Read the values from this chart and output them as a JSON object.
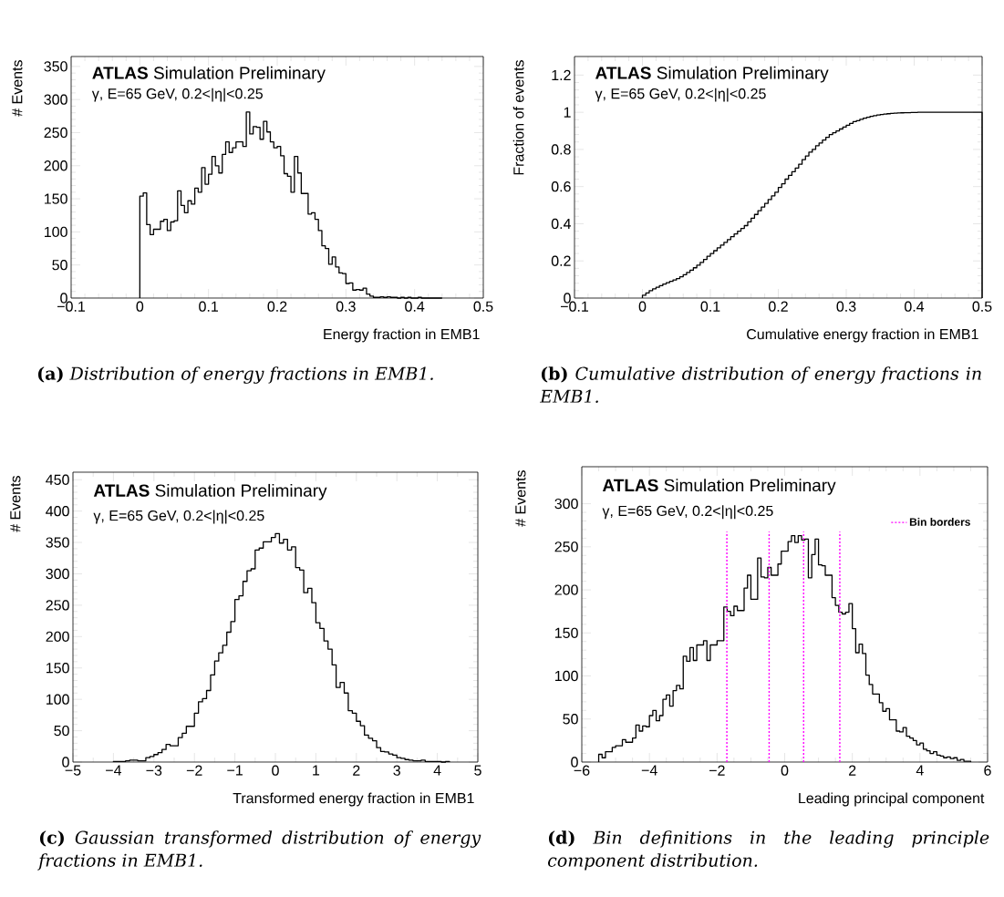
{
  "chart_data": [
    {
      "type": "histogram",
      "title": "**ATLAS** Simulation Preliminary",
      "subtitle": "γ, E=65 GeV, 0.2<|η|<0.25",
      "xlabel": "Energy fraction in EMB1",
      "ylabel": "# Events",
      "color": "#000000",
      "bins": [
        0,
        0.005,
        0.01,
        0.015,
        0.02,
        0.025,
        0.03,
        0.035,
        0.04,
        0.045,
        0.05,
        0.055,
        0.06,
        0.065,
        0.07,
        0.075,
        0.08,
        0.085,
        0.09,
        0.095,
        0.1,
        0.105,
        0.11,
        0.115,
        0.12,
        0.125,
        0.13,
        0.135,
        0.14,
        0.145,
        0.15,
        0.155,
        0.16,
        0.165,
        0.17,
        0.175,
        0.18,
        0.185,
        0.19,
        0.195,
        0.2,
        0.205,
        0.21,
        0.215,
        0.22,
        0.225,
        0.23,
        0.235,
        0.24,
        0.245,
        0.25,
        0.255,
        0.26,
        0.265,
        0.27,
        0.275,
        0.28,
        0.285,
        0.29,
        0.295,
        0.3,
        0.305,
        0.31,
        0.315,
        0.32,
        0.325,
        0.33,
        0.335,
        0.34,
        0.345,
        0.35,
        0.355,
        0.36,
        0.365,
        0.37,
        0.375,
        0.38,
        0.385,
        0.39,
        0.395,
        0.4,
        0.405,
        0.41,
        0.415,
        0.42,
        0.425,
        0.43,
        0.435,
        0.44
      ],
      "values": [
        154,
        159,
        111,
        96,
        104,
        104,
        116,
        119,
        102,
        115,
        117,
        162,
        140,
        129,
        147,
        142,
        166,
        160,
        197,
        172,
        187,
        214,
        200,
        189,
        217,
        236,
        220,
        227,
        236,
        236,
        229,
        281,
        248,
        259,
        258,
        240,
        267,
        251,
        236,
        227,
        229,
        215,
        188,
        184,
        160,
        214,
        189,
        158,
        158,
        127,
        129,
        119,
        102,
        79,
        75,
        51,
        62,
        47,
        38,
        37,
        22,
        23,
        12,
        13,
        12,
        15,
        6,
        3,
        1,
        1,
        2,
        1,
        2,
        1,
        1,
        0,
        1,
        0,
        1,
        0,
        0,
        1,
        0,
        0,
        0,
        0,
        0,
        0
      ],
      "xlim": [
        -0.1,
        0.5
      ],
      "ylim": [
        0,
        365
      ],
      "xticks": [
        {
          "value": -0.1,
          "label": "−0.1"
        },
        0,
        0.1,
        0.2,
        0.3,
        0.4,
        0.5
      ],
      "yticks": [
        0,
        50,
        100,
        150,
        200,
        250,
        300,
        350
      ],
      "annotations": [
        "**(a)** *Distribution of energy fractions in EMB1.*"
      ]
    },
    {
      "type": "histogram",
      "title": "**ATLAS** Simulation Preliminary",
      "subtitle": "γ, E=65 GeV, 0.2<|η|<0.25",
      "xlabel": "Cumulative energy fraction in EMB1",
      "ylabel": "Fraction of events",
      "color": "#000000",
      "bins": [
        0,
        0.005,
        0.01,
        0.015,
        0.02,
        0.025,
        0.03,
        0.035,
        0.04,
        0.045,
        0.05,
        0.055,
        0.06,
        0.065,
        0.07,
        0.075,
        0.08,
        0.085,
        0.09,
        0.095,
        0.1,
        0.105,
        0.11,
        0.115,
        0.12,
        0.125,
        0.13,
        0.135,
        0.14,
        0.145,
        0.15,
        0.155,
        0.16,
        0.165,
        0.17,
        0.175,
        0.18,
        0.185,
        0.19,
        0.195,
        0.2,
        0.205,
        0.21,
        0.215,
        0.22,
        0.225,
        0.23,
        0.235,
        0.24,
        0.245,
        0.25,
        0.255,
        0.26,
        0.265,
        0.27,
        0.275,
        0.28,
        0.285,
        0.29,
        0.295,
        0.3,
        0.305,
        0.31,
        0.315,
        0.32,
        0.325,
        0.33,
        0.335,
        0.34,
        0.345,
        0.35,
        0.355,
        0.36,
        0.365,
        0.37,
        0.375,
        0.38,
        0.385,
        0.39,
        0.395,
        0.4,
        0.405,
        0.41,
        0.415,
        0.42,
        0.425,
        0.43,
        0.435,
        0.44,
        0.445,
        0.45,
        0.455,
        0.46,
        0.465,
        0.47,
        0.475,
        0.48,
        0.485,
        0.49,
        0.495,
        0.5
      ],
      "values": [
        0.015,
        0.028,
        0.04,
        0.05,
        0.058,
        0.067,
        0.075,
        0.083,
        0.09,
        0.097,
        0.105,
        0.115,
        0.126,
        0.138,
        0.15,
        0.163,
        0.177,
        0.192,
        0.208,
        0.225,
        0.24,
        0.255,
        0.27,
        0.285,
        0.3,
        0.315,
        0.33,
        0.345,
        0.36,
        0.375,
        0.39,
        0.41,
        0.43,
        0.45,
        0.47,
        0.49,
        0.51,
        0.53,
        0.55,
        0.57,
        0.595,
        0.615,
        0.64,
        0.66,
        0.68,
        0.7,
        0.72,
        0.745,
        0.765,
        0.785,
        0.8,
        0.82,
        0.835,
        0.85,
        0.865,
        0.88,
        0.89,
        0.9,
        0.91,
        0.92,
        0.93,
        0.94,
        0.95,
        0.955,
        0.962,
        0.968,
        0.973,
        0.978,
        0.982,
        0.985,
        0.988,
        0.99,
        0.992,
        0.994,
        0.995,
        0.996,
        0.997,
        0.998,
        0.998,
        0.999,
        0.999,
        1,
        1,
        1,
        1,
        1,
        1,
        1,
        1,
        1,
        1,
        1,
        1,
        1,
        1,
        1,
        1,
        1,
        1,
        1
      ],
      "xlim": [
        -0.1,
        0.5
      ],
      "ylim": [
        0,
        1.3
      ],
      "xticks": [
        {
          "value": -0.1,
          "label": "−0.1"
        },
        0,
        0.1,
        0.2,
        0.3,
        0.4,
        0.5
      ],
      "yticks": [
        0,
        0.2,
        0.4,
        0.6,
        0.8,
        1,
        1.2
      ],
      "annotations": [
        "**(b)** *Cumulative distribution of energy fractions in EMB1.*"
      ]
    },
    {
      "type": "histogram",
      "title": "**ATLAS** Simulation Preliminary",
      "subtitle": "γ, E=65 GeV, 0.2<|η|<0.25",
      "xlabel": "Transformed energy fraction in EMB1",
      "ylabel": "# Events",
      "color": "#000000",
      "bins": [
        -4,
        -3.9,
        -3.8,
        -3.7,
        -3.6,
        -3.5,
        -3.4,
        -3.3,
        -3.2,
        -3.1,
        -3,
        -2.9,
        -2.8,
        -2.7,
        -2.6,
        -2.5,
        -2.4,
        -2.3,
        -2.2,
        -2.1,
        -2,
        -1.9,
        -1.8,
        -1.7,
        -1.6,
        -1.5,
        -1.4,
        -1.3,
        -1.2,
        -1.1,
        -1,
        -0.9,
        -0.8,
        -0.7,
        -0.6,
        -0.5,
        -0.4,
        -0.3,
        -0.2,
        -0.1,
        0,
        0.1,
        0.2,
        0.3,
        0.4,
        0.5,
        0.6,
        0.7,
        0.8,
        0.9,
        1,
        1.1,
        1.2,
        1.3,
        1.4,
        1.5,
        1.6,
        1.7,
        1.8,
        1.9,
        2,
        2.1,
        2.2,
        2.3,
        2.4,
        2.5,
        2.6,
        2.7,
        2.8,
        2.9,
        3,
        3.1,
        3.2,
        3.3,
        3.4,
        3.5,
        3.6,
        3.7,
        3.8,
        3.9,
        4,
        4.1,
        4.2,
        4.3
      ],
      "values": [
        1,
        1,
        1,
        2,
        3,
        3,
        2,
        2,
        7,
        9,
        12,
        15,
        20,
        28,
        26,
        26,
        39,
        46,
        57,
        57,
        78,
        96,
        101,
        114,
        139,
        161,
        174,
        186,
        207,
        224,
        259,
        265,
        288,
        305,
        308,
        338,
        341,
        351,
        351,
        358,
        364,
        349,
        355,
        338,
        343,
        310,
        306,
        270,
        277,
        254,
        222,
        213,
        193,
        180,
        155,
        119,
        127,
        110,
        82,
        78,
        65,
        58,
        43,
        38,
        34,
        23,
        17,
        16,
        13,
        11,
        7,
        6,
        4,
        3,
        2,
        2,
        3,
        1,
        1,
        1,
        1,
        0,
        1
      ],
      "xlim": [
        -5,
        5
      ],
      "ylim": [
        0,
        462
      ],
      "xticks": [
        {
          "value": -5,
          "label": "−5"
        },
        {
          "value": -4,
          "label": "−4"
        },
        {
          "value": -3,
          "label": "−3"
        },
        {
          "value": -2,
          "label": "−2"
        },
        {
          "value": -1,
          "label": "−1"
        },
        0,
        1,
        2,
        3,
        4,
        5
      ],
      "yticks": [
        0,
        50,
        100,
        150,
        200,
        250,
        300,
        350,
        400,
        450
      ],
      "annotations": [
        "**(c)** *Gaussian transformed distribution of energy fractions in EMB1.*"
      ]
    },
    {
      "type": "histogram",
      "title": "**ATLAS** Simulation Preliminary",
      "subtitle": "γ, E=65 GeV, 0.2<|η|<0.25",
      "xlabel": "Leading principal component",
      "ylabel": "# Events",
      "color": "#000000",
      "bins": [
        -5.5,
        -5.4,
        -5.3,
        -5.2,
        -5.1,
        -5,
        -4.9,
        -4.8,
        -4.7,
        -4.6,
        -4.5,
        -4.4,
        -4.3,
        -4.2,
        -4.1,
        -4,
        -3.9,
        -3.8,
        -3.7,
        -3.6,
        -3.5,
        -3.4,
        -3.3,
        -3.2,
        -3.1,
        -3,
        -2.9,
        -2.8,
        -2.7,
        -2.6,
        -2.5,
        -2.4,
        -2.3,
        -2.2,
        -2.1,
        -2,
        -1.9,
        -1.8,
        -1.7,
        -1.6,
        -1.5,
        -1.4,
        -1.3,
        -1.2,
        -1.1,
        -1,
        -0.9,
        -0.8,
        -0.7,
        -0.6,
        -0.5,
        -0.4,
        -0.3,
        -0.2,
        -0.1,
        0,
        0.1,
        0.2,
        0.3,
        0.4,
        0.5,
        0.6,
        0.7,
        0.8,
        0.9,
        1,
        1.1,
        1.2,
        1.3,
        1.4,
        1.5,
        1.6,
        1.7,
        1.8,
        1.9,
        2,
        2.1,
        2.2,
        2.3,
        2.4,
        2.5,
        2.6,
        2.7,
        2.8,
        2.9,
        3,
        3.1,
        3.2,
        3.3,
        3.4,
        3.5,
        3.6,
        3.7,
        3.8,
        3.9,
        4,
        4.1,
        4.2,
        4.3,
        4.4,
        4.5,
        4.6,
        4.7,
        4.8,
        4.9,
        5,
        5.1,
        5.2,
        5.3,
        5.4,
        5.5
      ],
      "values": [
        9,
        5,
        12,
        12,
        17,
        19,
        19,
        26,
        23,
        23,
        28,
        43,
        36,
        42,
        41,
        54,
        60,
        48,
        54,
        73,
        78,
        65,
        83,
        89,
        85,
        123,
        117,
        133,
        118,
        136,
        136,
        141,
        118,
        136,
        136,
        141,
        141,
        180,
        175,
        170,
        181,
        176,
        176,
        202,
        217,
        189,
        189,
        237,
        215,
        214,
        226,
        217,
        217,
        230,
        245,
        245,
        256,
        263,
        255,
        263,
        258,
        259,
        214,
        241,
        259,
        229,
        228,
        217,
        217,
        191,
        182,
        174,
        172,
        174,
        184,
        155,
        127,
        137,
        126,
        101,
        90,
        79,
        79,
        69,
        59,
        62,
        49,
        49,
        36,
        35,
        40,
        30,
        28,
        25,
        20,
        22,
        15,
        13,
        10,
        12,
        8,
        7,
        5,
        6,
        4,
        5,
        2,
        3,
        1,
        1
      ],
      "xlim": [
        -6,
        6
      ],
      "ylim": [
        0,
        343
      ],
      "xticks": [
        {
          "value": -6,
          "label": "−6"
        },
        {
          "value": -4,
          "label": "−4"
        },
        {
          "value": -2,
          "label": "−2"
        },
        0,
        2,
        4,
        6
      ],
      "yticks": [
        0,
        50,
        100,
        150,
        200,
        250,
        300
      ],
      "ref_lines": [
        {
          "axis": "x",
          "value": -1.71,
          "label": "Bin borders",
          "color": "#ff00ff",
          "line_style": "dotted"
        },
        {
          "axis": "x",
          "value": -0.46,
          "color": "#ff00ff",
          "line_style": "dotted"
        },
        {
          "axis": "x",
          "value": 0.56,
          "color": "#ff00ff",
          "line_style": "dotted"
        },
        {
          "axis": "x",
          "value": 1.63,
          "color": "#ff00ff",
          "line_style": "dotted"
        }
      ],
      "legend": "top right",
      "annotations": [
        "**(d)** *Bin definitions in the leading principle component distribution.*"
      ]
    }
  ]
}
